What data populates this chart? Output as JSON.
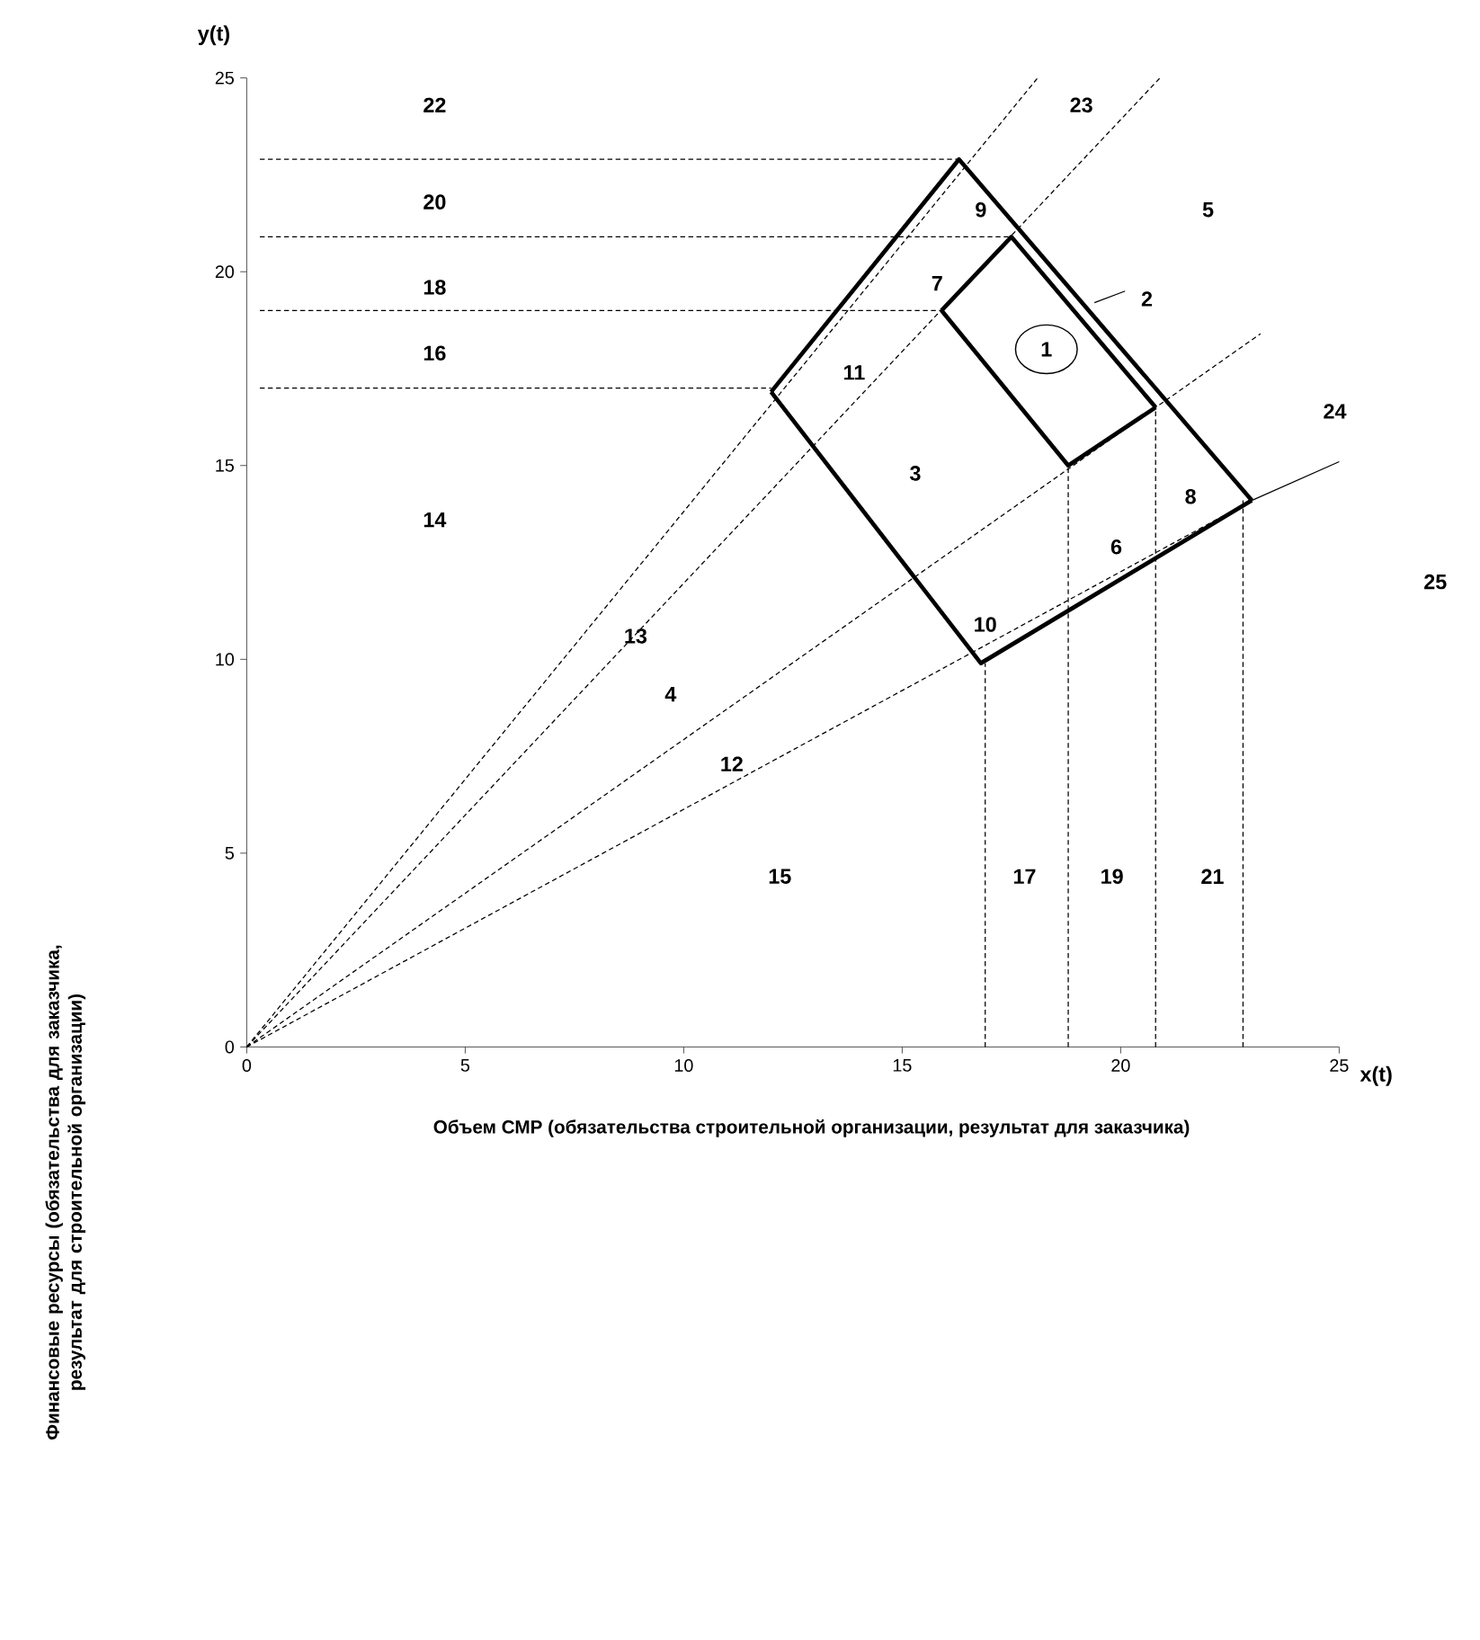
{
  "chart_data": {
    "type": "line",
    "xlabel": "x(t)",
    "ylabel": "y(t)",
    "xlim": [
      0,
      25
    ],
    "ylim": [
      0,
      25
    ],
    "xticks": [
      0,
      5,
      10,
      15,
      20,
      25
    ],
    "yticks": [
      0,
      5,
      10,
      15,
      20,
      25
    ],
    "series": [
      {
        "color": "#000000",
        "line_style": "solid",
        "x": [
          12.0,
          16.3,
          23.0
        ],
        "values": [
          16.9,
          22.9,
          14.1
        ]
      },
      {
        "color": "#000000",
        "line_style": "solid",
        "x": [
          12.0,
          16.8,
          23.0
        ],
        "values": [
          16.9,
          9.9,
          14.1
        ]
      },
      {
        "color": "#000000",
        "line_style": "solid",
        "x": [
          15.9,
          17.5,
          20.8
        ],
        "values": [
          19.0,
          20.9,
          16.5
        ]
      },
      {
        "color": "#000000",
        "line_style": "solid",
        "x": [
          15.9,
          18.8,
          20.8
        ],
        "values": [
          19.0,
          15.0,
          16.5
        ]
      },
      {
        "color": "#000000",
        "line_style": "dashed",
        "x": [
          0,
          18.1
        ],
        "values": [
          0,
          25
        ]
      },
      {
        "color": "#000000",
        "line_style": "dashed",
        "x": [
          0,
          20.9
        ],
        "values": [
          0,
          25
        ]
      },
      {
        "color": "#000000",
        "line_style": "dashed",
        "x": [
          0,
          23.2
        ],
        "values": [
          0,
          18.4
        ]
      },
      {
        "color": "#000000",
        "line_style": "dashed",
        "x": [
          0,
          23.0
        ],
        "values": [
          0,
          14.1
        ]
      },
      {
        "color": "#000000",
        "line_style": "solid",
        "x": [
          23.0,
          25
        ],
        "values": [
          14.1,
          15.1
        ]
      },
      {
        "color": "#000000",
        "line_style": "solid",
        "x": [
          19.4,
          20.1
        ],
        "values": [
          19.2,
          19.5
        ]
      },
      {
        "color": "#000000",
        "line_style": "dashed",
        "x": [
          0.3,
          16.3
        ],
        "values": [
          22.9,
          22.9
        ]
      },
      {
        "color": "#000000",
        "line_style": "dashed",
        "x": [
          0.3,
          17.5
        ],
        "values": [
          20.9,
          20.9
        ]
      },
      {
        "color": "#000000",
        "line_style": "dashed",
        "x": [
          0.3,
          15.9
        ],
        "values": [
          19.0,
          19.0
        ]
      },
      {
        "color": "#000000",
        "line_style": "dashed",
        "x": [
          0.3,
          12.0
        ],
        "values": [
          17.0,
          17.0
        ]
      },
      {
        "color": "#000000",
        "line_style": "dashed",
        "x": [
          16.9,
          16.9
        ],
        "values": [
          0,
          9.9
        ]
      },
      {
        "color": "#000000",
        "line_style": "dashed",
        "x": [
          18.8,
          18.8
        ],
        "values": [
          0,
          15.0
        ]
      },
      {
        "color": "#000000",
        "line_style": "dashed",
        "x": [
          20.8,
          20.8
        ],
        "values": [
          0,
          16.5
        ]
      },
      {
        "color": "#000000",
        "line_style": "dashed",
        "x": [
          22.8,
          22.8
        ],
        "values": [
          0,
          14.1
        ]
      }
    ],
    "annotations": [
      "Объем СМР (обязательства строительной организации, результат для заказчика)",
      "Финансовые ресурсы (обязательства для заказчика, результат для строительной организации)",
      "1",
      "2",
      "3",
      "4",
      "5",
      "6",
      "7",
      "8",
      "9",
      "10",
      "11",
      "12",
      "13",
      "14",
      "15",
      "16",
      "17",
      "18",
      "19",
      "20",
      "21",
      "22",
      "23",
      "24",
      "25"
    ]
  }
}
